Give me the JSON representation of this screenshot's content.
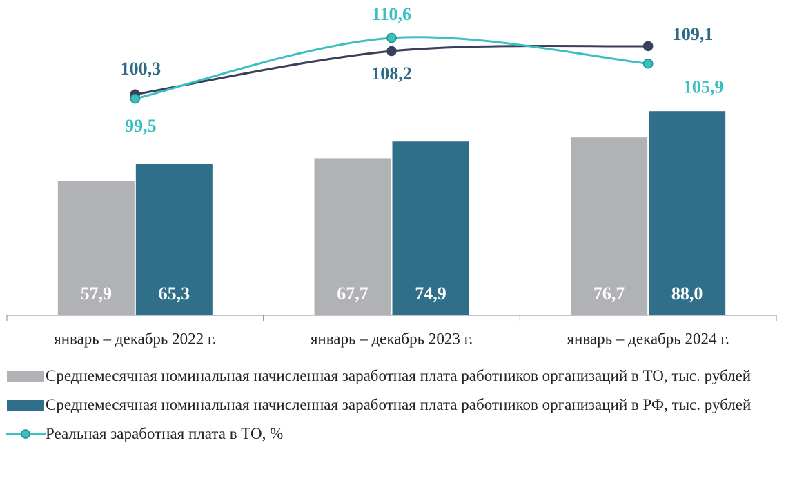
{
  "chart_data": {
    "type": "bar",
    "categories": [
      "январь – декабрь 2022 г.",
      "январь – декабрь 2023 г.",
      "январь – декабрь 2024 г."
    ],
    "ylim": [
      0,
      130
    ],
    "y2lim": [
      60,
      115
    ],
    "series": [
      {
        "name": "Среднемесячная номинальная начисленная заработная плата работников организаций в ТО, тыс. рублей",
        "type": "bar",
        "color": "#b1b2b6",
        "values": [
          57.9,
          67.7,
          76.7
        ],
        "value_labels": [
          "57,9",
          "67,7",
          "76,7"
        ]
      },
      {
        "name": "Среднемесячная номинальная начисленная заработная плата работников организаций в РФ, тыс. рублей",
        "type": "bar",
        "color": "#2f6f8a",
        "values": [
          65.3,
          74.9,
          88.0
        ],
        "value_labels": [
          "65,3",
          "74,9",
          "88,0"
        ]
      },
      {
        "type": "line",
        "axis": "y2",
        "color": "#3a3f5c",
        "label_color": "#2e6a85",
        "values": [
          100.3,
          108.2,
          109.1
        ],
        "value_labels": [
          "100,3",
          "108,2",
          "109,1"
        ]
      },
      {
        "name": "Реальная заработная плата в ТО, %",
        "type": "line",
        "axis": "y2",
        "color": "#3bbfc0",
        "label_color": "#3bbfc0",
        "values": [
          99.5,
          110.6,
          105.9
        ],
        "value_labels": [
          "99,5",
          "110,6",
          "105,9"
        ]
      }
    ]
  }
}
